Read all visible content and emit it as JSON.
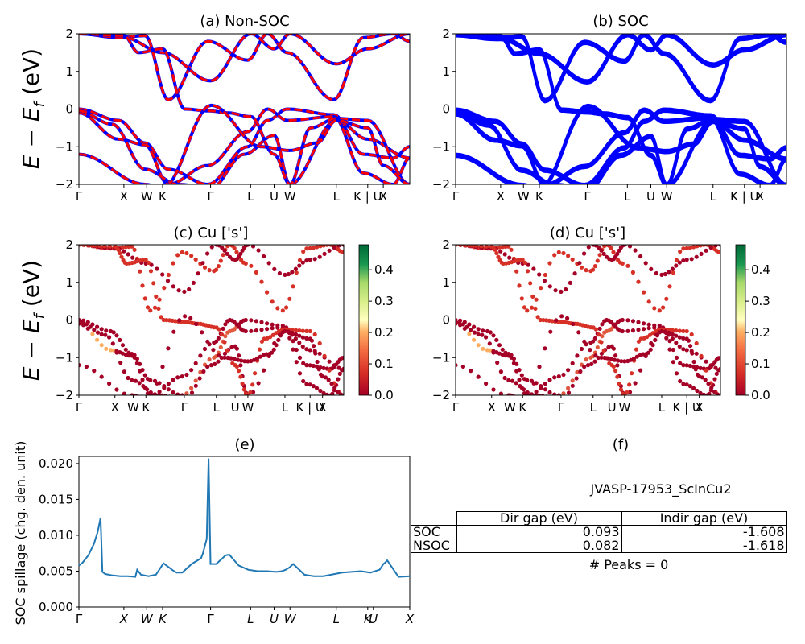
{
  "chart_data": [
    {
      "type": "line",
      "title": "(a) Non-SOC",
      "ylabel": "$E - E_f$ (eV)",
      "ylabel_main": "E − E",
      "ylabel_sub": "f",
      "ylabel_unit": " (eV)",
      "ylim": [
        -2,
        2
      ],
      "yticks": [
        "2",
        "1",
        "0",
        "−1",
        "−2"
      ],
      "xticks": [
        "Γ",
        "X",
        "W",
        "K",
        "Γ",
        "L",
        "U",
        "W",
        "L",
        "K | U",
        "X"
      ],
      "series": [
        {
          "color": "#0000ff",
          "style": "solid"
        },
        {
          "color": "#ff0000",
          "style": "dashed"
        }
      ],
      "bands": [
        {
          "x": [
            0,
            0.12,
            0.2,
            0.27,
            0.39,
            0.51,
            0.57,
            0.63,
            0.77,
            0.86,
            0.95,
            1
          ],
          "y": [
            0,
            -0.3,
            -0.9,
            -1.6,
            -2,
            -1.0,
            -0.3,
            0,
            -0.15,
            -1.2,
            -1.3,
            -1
          ]
        },
        {
          "x": [
            0,
            0.12,
            0.2,
            0.27,
            0.39,
            0.51,
            0.57,
            0.63,
            0.77,
            0.86,
            0.95,
            1
          ],
          "y": [
            -0.1,
            -0.8,
            -0.95,
            -2,
            -1.5,
            -0.6,
            0,
            -0.3,
            -0.2,
            -1.7,
            -2,
            -1.3
          ]
        },
        {
          "x": [
            0,
            0.12,
            0.2,
            0.27,
            0.39,
            0.51,
            0.57,
            0.63,
            0.77,
            0.86,
            0.95,
            1
          ],
          "y": [
            2,
            1.9,
            1.95,
            0.25,
            1.8,
            1.3,
            2,
            1.5,
            0.25,
            1.9,
            2,
            1.8
          ]
        }
      ]
    },
    {
      "type": "line",
      "title": "(b) SOC",
      "ylim": [
        -2,
        2
      ],
      "yticks": [
        "2",
        "1",
        "0",
        "−1",
        "−2"
      ],
      "xticks": [
        "Γ",
        "X",
        "W",
        "K",
        "Γ",
        "L",
        "U",
        "W",
        "L",
        "K | U",
        "X"
      ],
      "series": [
        {
          "color": "#0000ff",
          "style": "solid"
        }
      ]
    },
    {
      "type": "scatter",
      "title": "(c)  Cu ['s']",
      "ylim": [
        -2,
        2
      ],
      "yticks": [
        "2",
        "1",
        "0",
        "−1",
        "−2"
      ],
      "xticks": [
        "Γ",
        "X",
        "W",
        "K",
        "Γ",
        "L",
        "U",
        "W",
        "L",
        "K | U",
        "X"
      ],
      "colorbar": {
        "range": [
          0.0,
          0.48
        ],
        "ticks": [
          "0.4",
          "0.3",
          "0.2",
          "0.1",
          "0.0"
        ],
        "cmap": "RdYlGn"
      }
    },
    {
      "type": "scatter",
      "title": "(d) Cu ['s']",
      "ylim": [
        -2,
        2
      ],
      "yticks": [
        "2",
        "1",
        "0",
        "−1",
        "−2"
      ],
      "xticks": [
        "Γ",
        "X",
        "W",
        "K",
        "Γ",
        "L",
        "U",
        "W",
        "L",
        "K | U",
        "X"
      ],
      "colorbar": {
        "range": [
          0.0,
          0.48
        ],
        "ticks": [
          "0.4",
          "0.3",
          "0.2",
          "0.1",
          "0.0"
        ],
        "cmap": "RdYlGn"
      }
    },
    {
      "type": "line",
      "title": "(e)",
      "ylabel": "SOC spillage (chg. den. unit)",
      "ylim": [
        0,
        0.021
      ],
      "yticks": [
        "0.020",
        "0.015",
        "0.010",
        "0.005",
        "0.000"
      ],
      "xticks": [
        "Γ",
        "X",
        "W",
        "K",
        "Γ",
        "L",
        "U",
        "W",
        "L",
        "K",
        "U",
        "X"
      ],
      "series": [
        {
          "color": "#1f77b4",
          "style": "solid"
        }
      ],
      "x": [
        0,
        0.02,
        0.05,
        0.08,
        0.1,
        0.115,
        0.125,
        0.14,
        0.18,
        0.22,
        0.26,
        0.3,
        0.31,
        0.33,
        0.37,
        0.41,
        0.43,
        0.45,
        0.5,
        0.52,
        0.55,
        0.6,
        0.65,
        0.66,
        0.68,
        0.69,
        0.7,
        0.73,
        0.76,
        0.78,
        0.8,
        0.85,
        0.9,
        0.95,
        1.0,
        1.05,
        1.08,
        1.1,
        1.12,
        1.14,
        1.16,
        1.2,
        1.25,
        1.3,
        1.4,
        1.5,
        1.55,
        1.6,
        1.62,
        1.63,
        1.64,
        1.7,
        1.76
      ],
      "values": [
        0.0058,
        0.0062,
        0.0072,
        0.0088,
        0.0105,
        0.0124,
        0.0049,
        0.0046,
        0.0044,
        0.0043,
        0.0043,
        0.0042,
        0.0052,
        0.0045,
        0.0043,
        0.0045,
        0.0053,
        0.0061,
        0.0051,
        0.0048,
        0.0048,
        0.006,
        0.0068,
        0.0075,
        0.0095,
        0.0207,
        0.006,
        0.006,
        0.0067,
        0.0072,
        0.0073,
        0.0058,
        0.0052,
        0.005,
        0.005,
        0.0049,
        0.005,
        0.0052,
        0.0055,
        0.006,
        0.0055,
        0.0045,
        0.0043,
        0.0043,
        0.0048,
        0.005,
        0.0048,
        0.0052,
        0.006,
        0.0062,
        0.0065,
        0.0042,
        0.0043
      ]
    }
  ],
  "info_panel": {
    "title": "(f)",
    "material": "JVASP-17953_ScInCu2",
    "table": {
      "headers": [
        "Dir gap (eV)",
        "Indir gap (eV)"
      ],
      "rows": [
        {
          "label": "SOC",
          "dir": "0.093",
          "indir": "-1.608"
        },
        {
          "label": "NSOC",
          "dir": "0.082",
          "indir": "-1.618"
        }
      ]
    },
    "peaks": "# Peaks = 0"
  }
}
